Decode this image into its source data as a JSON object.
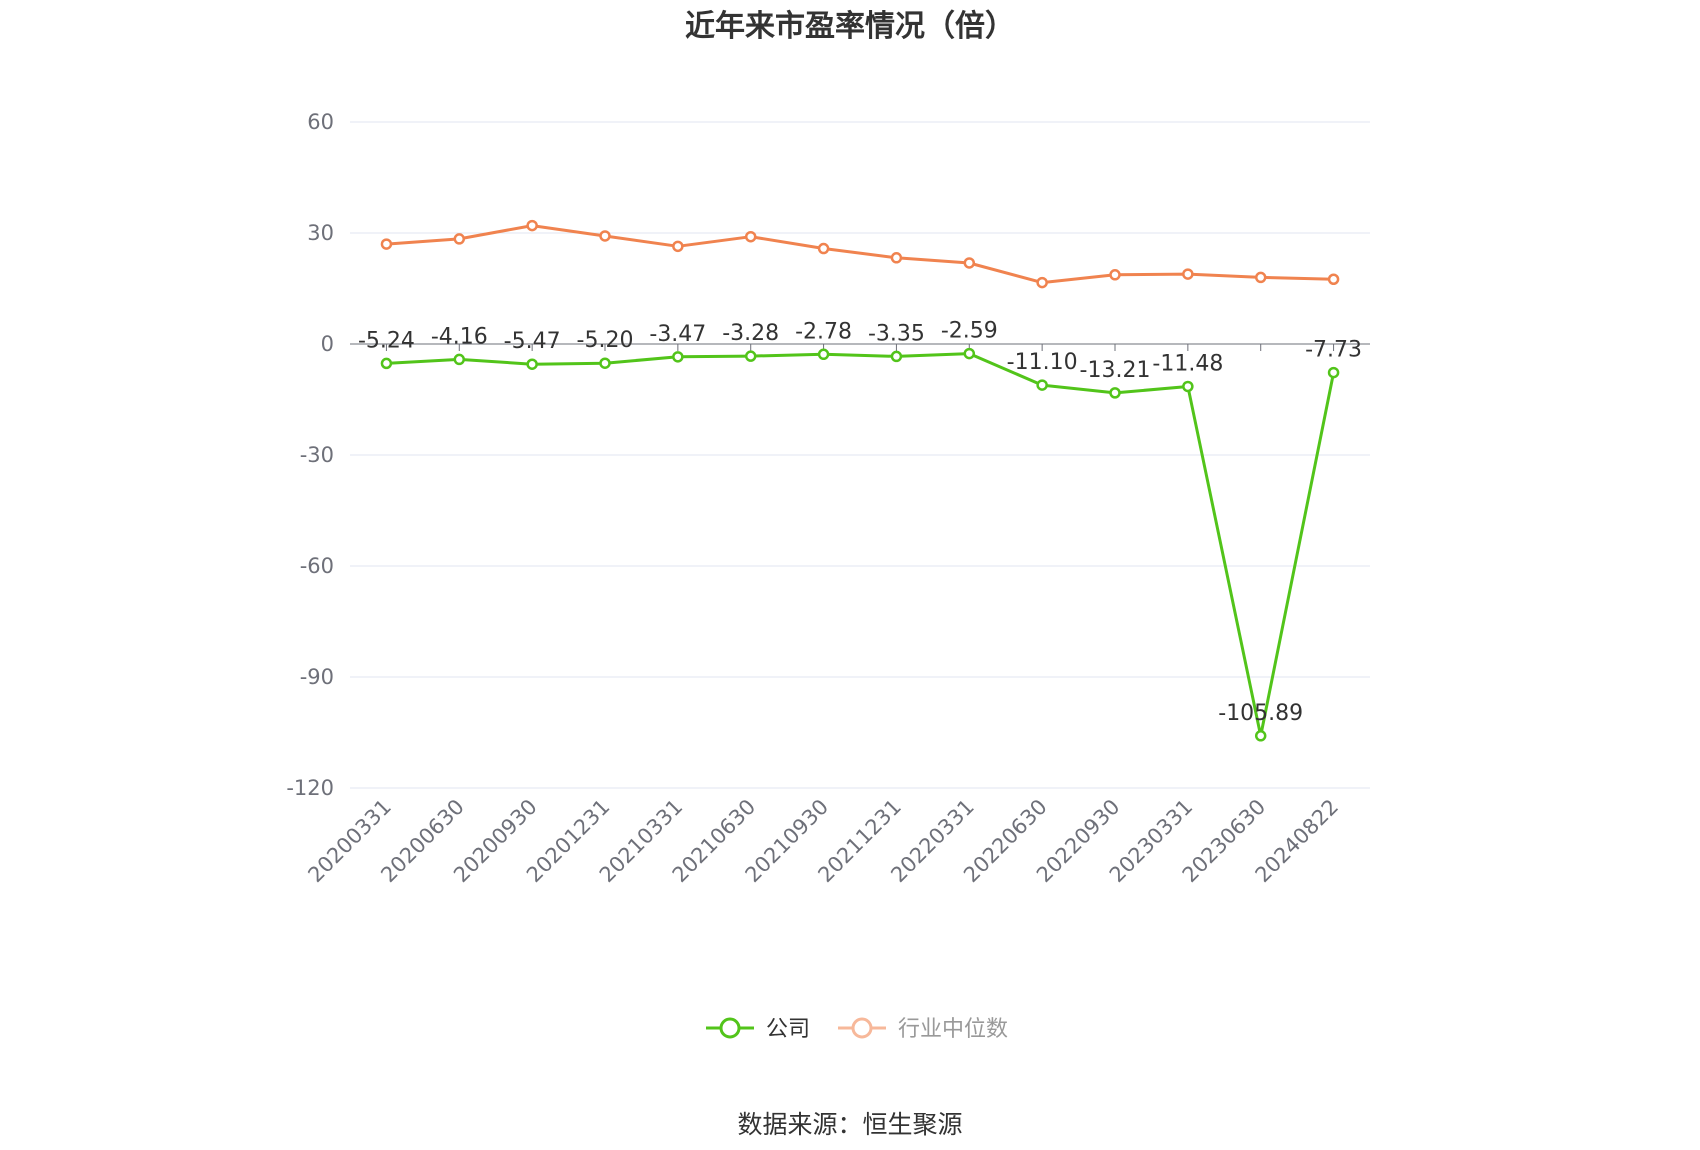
{
  "chart_data": {
    "type": "line",
    "title": "近年来市盈率情况（倍）",
    "categories": [
      "20200331",
      "20200630",
      "20200930",
      "20201231",
      "20210331",
      "20210630",
      "20210930",
      "20211231",
      "20220331",
      "20220630",
      "20220930",
      "20230331",
      "20230630",
      "20240822"
    ],
    "series": [
      {
        "name": "公司",
        "color": "#52c41a",
        "values": [
          -5.24,
          -4.16,
          -5.47,
          -5.2,
          -3.47,
          -3.28,
          -2.78,
          -3.35,
          -2.59,
          -11.1,
          -13.21,
          -11.48,
          -105.89,
          -7.73
        ],
        "labels": [
          "-5.24",
          "-4.16",
          "-5.47",
          "-5.20",
          "-3.47",
          "-3.28",
          "-2.78",
          "-3.35",
          "-2.59",
          "-11.10",
          "-13.21",
          "-11.48",
          "-105.89",
          "-7.73"
        ]
      },
      {
        "name": "行业中位数",
        "color": "#f0834f",
        "values": [
          27.0,
          28.4,
          32.0,
          29.2,
          26.4,
          29.0,
          25.8,
          23.3,
          21.9,
          16.6,
          18.7,
          18.9,
          18.0,
          17.5
        ]
      }
    ],
    "y_ticks": [
      "60",
      "30",
      "0",
      "-30",
      "-60",
      "-90",
      "-120"
    ],
    "ylim": [
      -120,
      60
    ],
    "grid": true,
    "legend_position": "bottom"
  },
  "source_text": "数据来源：恒生聚源"
}
